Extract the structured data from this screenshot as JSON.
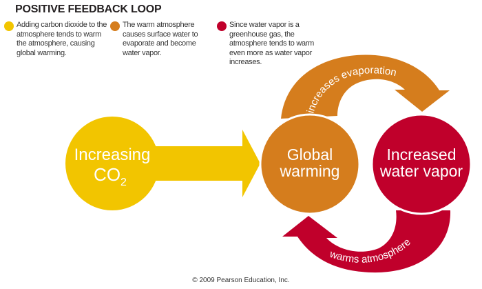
{
  "title": "POSITIVE FEEDBACK LOOP",
  "legend": [
    {
      "color": "#f2c500",
      "text": "Adding carbon dioxide to the atmosphere tends to warm the atmosphere, causing global warming."
    },
    {
      "color": "#d57d1d",
      "text": "The warm atmosphere causes surface water to evaporate and become water vapor."
    },
    {
      "color": "#c0002b",
      "text": "Since water vapor is a greenhouse gas, the atmosphere tends to warm even more as water vapor increases."
    }
  ],
  "nodes": {
    "co2": {
      "line1": "Increasing",
      "line2": "CO",
      "sub": "2",
      "color": "#f2c500"
    },
    "warming": {
      "line1": "Global",
      "line2": "warming",
      "color": "#d57d1d"
    },
    "vapor": {
      "line1": "Increased",
      "line2": "water vapor",
      "color": "#c0002b"
    }
  },
  "arrows": {
    "evaporation": "increases evaporation",
    "atmosphere": "warms atmosphere"
  },
  "footer": "© 2009 Pearson Education, Inc."
}
